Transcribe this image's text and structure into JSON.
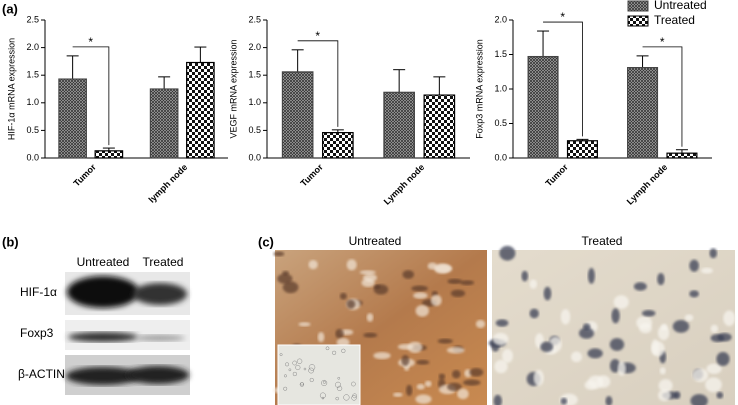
{
  "panels": {
    "a": "(a)",
    "b": "(b)",
    "c": "(c)"
  },
  "chart_data": [
    {
      "type": "bar",
      "ylabel": "HIF-1α mRNA expression",
      "categories": [
        "Tumor",
        "lymph node"
      ],
      "series": [
        {
          "color": "#444444",
          "pattern": "crosshatch",
          "values": [
            1.43,
            1.25
          ],
          "errors": [
            0.42,
            0.22
          ]
        },
        {
          "color": "#000000",
          "pattern": "checker",
          "values": [
            0.13,
            1.73
          ],
          "errors": [
            0.05,
            0.28
          ]
        }
      ],
      "ylim": [
        0,
        2.5
      ],
      "yticks": [
        {
          "value": 0,
          "label": "0.0"
        },
        {
          "value": 0.5,
          "label": "0.5"
        },
        {
          "value": 1,
          "label": "1.0"
        },
        {
          "value": 1.5,
          "label": "1.5"
        },
        {
          "value": 2,
          "label": "2.0"
        },
        {
          "value": 2.5,
          "label": "2.5"
        }
      ],
      "significance": [
        "*",
        null
      ]
    },
    {
      "type": "bar",
      "ylabel": "VEGF mRNA expression",
      "categories": [
        "Tumor",
        "Lymph node"
      ],
      "series": [
        {
          "color": "#444444",
          "pattern": "crosshatch",
          "values": [
            1.56,
            1.19
          ],
          "errors": [
            0.4,
            0.41
          ]
        },
        {
          "color": "#000000",
          "pattern": "checker",
          "values": [
            0.46,
            1.14
          ],
          "errors": [
            0.05,
            0.33
          ]
        }
      ],
      "ylim": [
        0,
        2.5
      ],
      "yticks": [
        {
          "value": 0,
          "label": "0.0"
        },
        {
          "value": 0.5,
          "label": "0.5"
        },
        {
          "value": 1,
          "label": "1.0"
        },
        {
          "value": 1.5,
          "label": "1.5"
        },
        {
          "value": 2,
          "label": "2.0"
        },
        {
          "value": 2.5,
          "label": "2.5"
        }
      ],
      "significance": [
        "*",
        null
      ]
    },
    {
      "type": "bar",
      "ylabel": "Foxp3 mRNA expression",
      "categories": [
        "Tumor",
        "Lymph node"
      ],
      "series": [
        {
          "name": "Untreated",
          "color": "#444444",
          "pattern": "crosshatch",
          "values": [
            1.47,
            1.31
          ],
          "errors": [
            0.37,
            0.17
          ]
        },
        {
          "name": "Treated",
          "color": "#000000",
          "pattern": "checker",
          "values": [
            0.25,
            0.07
          ],
          "errors": [
            0.02,
            0.05
          ]
        }
      ],
      "ylim": [
        0,
        2.0
      ],
      "yticks": [
        {
          "value": 0,
          "label": "0.0"
        },
        {
          "value": 0.5,
          "label": "0.5"
        },
        {
          "value": 1,
          "label": "1.0"
        },
        {
          "value": 1.5,
          "label": "1.5"
        },
        {
          "value": 2,
          "label": "2.0"
        }
      ],
      "significance": [
        "*",
        "*"
      ],
      "legend": "top-right"
    }
  ],
  "western_blot": {
    "columns": [
      "Untreated",
      "Treated"
    ],
    "rows": [
      "HIF-1α",
      "Foxp3",
      "β-ACTIN"
    ]
  },
  "ihc": {
    "columns": [
      "Untreated",
      "Treated"
    ]
  }
}
